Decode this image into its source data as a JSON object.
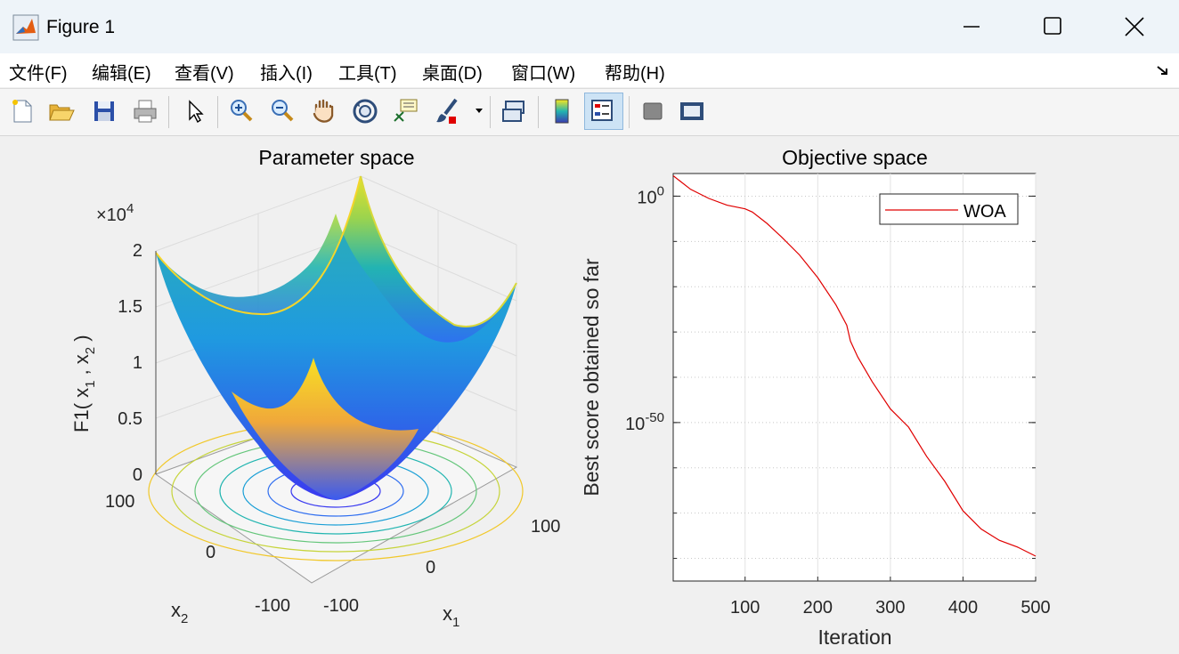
{
  "window": {
    "title": "Figure 1"
  },
  "menu": [
    {
      "label": "文件(F)",
      "key": "F"
    },
    {
      "label": "编辑(E)",
      "key": "E"
    },
    {
      "label": "查看(V)",
      "key": "V"
    },
    {
      "label": "插入(I)",
      "key": "I"
    },
    {
      "label": "工具(T)",
      "key": "T"
    },
    {
      "label": "桌面(D)",
      "key": "D"
    },
    {
      "label": "窗口(W)",
      "key": "W"
    },
    {
      "label": "帮助(H)",
      "key": "H"
    }
  ],
  "toolbar_icons": [
    "new-figure-icon",
    "open-file-icon",
    "save-icon",
    "print-icon",
    "select-arrow-icon",
    "zoom-in-icon",
    "zoom-out-icon",
    "pan-hand-icon",
    "rotate-3d-icon",
    "data-tip-icon",
    "brush-icon",
    "link-plot-icon",
    "colorbar-icon",
    "legend-icon",
    "hide-plot-tools-icon",
    "show-plot-tools-icon"
  ],
  "left_plot": {
    "title": "Parameter space",
    "zlabel": "F1( x",
    "xlabel": "x",
    "ylabel": "x",
    "subscript_1": "1",
    "subscript_2": "2",
    "zlabel_sep": " , x",
    "zlabel_end": " )",
    "exponent_prefix": "×10",
    "exponent": "4"
  },
  "chart_data": [
    {
      "type": "surface",
      "title": "Parameter space",
      "function": "x1^2 + x2^2",
      "x1_range": [
        -100,
        100
      ],
      "x2_range": [
        -100,
        100
      ],
      "z_range": [
        0,
        20000
      ],
      "z_scale_label": "×10^4",
      "x1_ticks": [
        "-100",
        "0",
        "100"
      ],
      "x2_ticks": [
        "-100",
        "0",
        "100"
      ],
      "z_ticks": [
        "0",
        "0.5",
        "1",
        "1.5",
        "2"
      ],
      "xlabel": "x1",
      "ylabel": "x2",
      "zlabel": "F1( x1 , x2 )",
      "grid": true,
      "contours": true
    },
    {
      "type": "line",
      "title": "Objective space",
      "xlabel": "Iteration",
      "ylabel": "Best score obtained so far",
      "yscale": "log",
      "xlim": [
        1,
        500
      ],
      "x_ticks": [
        "100",
        "200",
        "300",
        "400",
        "500"
      ],
      "y_ticks": [
        {
          "base": "10",
          "exp": "0"
        },
        {
          "base": "10",
          "exp": "-50"
        }
      ],
      "ylim_exp": [
        -85,
        5
      ],
      "legend": "top-right",
      "grid": true,
      "series": [
        {
          "name": "WOA",
          "color": "#e00000",
          "x": [
            1,
            25,
            50,
            75,
            100,
            110,
            130,
            150,
            175,
            200,
            225,
            240,
            245,
            255,
            275,
            300,
            325,
            350,
            375,
            400,
            425,
            450,
            475,
            500
          ],
          "log10_y": [
            4.5,
            1.5,
            -0.5,
            -2,
            -2.8,
            -3.5,
            -6,
            -9,
            -13,
            -18,
            -24,
            -28.5,
            -32,
            -35.5,
            -41,
            -47,
            -51,
            -57.5,
            -63,
            -69.5,
            -73.5,
            -76,
            -77.5,
            -79.5
          ]
        }
      ]
    }
  ]
}
